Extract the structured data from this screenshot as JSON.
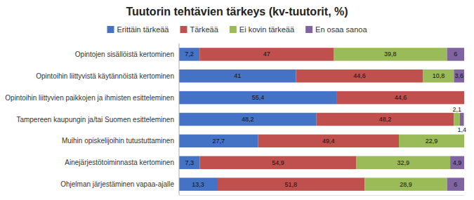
{
  "chart_data": {
    "type": "bar",
    "orientation": "horizontal",
    "stacked": true,
    "title": "Tuutorin tehtävien tärkeys (kv-tuutorit, %)",
    "categories": [
      "Opintojen sisällöistä kertominen",
      "Opintoihin liittyvistä käytännöistä kertominen",
      "Opintoihin liittyvien paikkojen ja ihmisten esitteleminen",
      "Tampereen kaupungin ja/tai Suomen esitteleminen",
      "Muihin opiskelijoihin tutustuttaminen",
      "Ainejärjestötoiminnasta kertominen",
      "Ohjelman järjestäminen vapaa-ajalle"
    ],
    "series": [
      {
        "name": "Erittäin tärkeää",
        "color": "#4472C4",
        "values": [
          7.2,
          41.0,
          55.4,
          48.2,
          27.7,
          7.3,
          13.3
        ],
        "value_labels": [
          "7,2",
          "41",
          "55,4",
          "48,2",
          "27,7",
          "7,3",
          "13,3"
        ]
      },
      {
        "name": "Tärkeää",
        "color": "#C0504D",
        "values": [
          47.0,
          44.6,
          44.6,
          48.2,
          49.4,
          54.9,
          51.8
        ],
        "value_labels": [
          "47",
          "44,6",
          "44,6",
          "48,2",
          "49,4",
          "54,9",
          "51,8"
        ]
      },
      {
        "name": "Ei kovin tärkeää",
        "color": "#9BBB59",
        "values": [
          39.8,
          10.8,
          0.0,
          2.1,
          22.9,
          32.9,
          28.9
        ],
        "value_labels": [
          "39,8",
          "10,8",
          null,
          "2,1",
          "22,9",
          "32,9",
          "28,9"
        ]
      },
      {
        "name": "En osaa sanoa",
        "color": "#8064A2",
        "values": [
          6.0,
          3.6,
          0.0,
          1.4,
          0.0,
          4.9,
          6.0
        ],
        "value_labels": [
          "6",
          "3,6",
          null,
          "1,4",
          null,
          "4,9",
          "6"
        ]
      }
    ],
    "xlim": [
      0,
      100
    ],
    "tick_labels": "y",
    "data_labels": true,
    "legend": "top",
    "grid": false
  }
}
